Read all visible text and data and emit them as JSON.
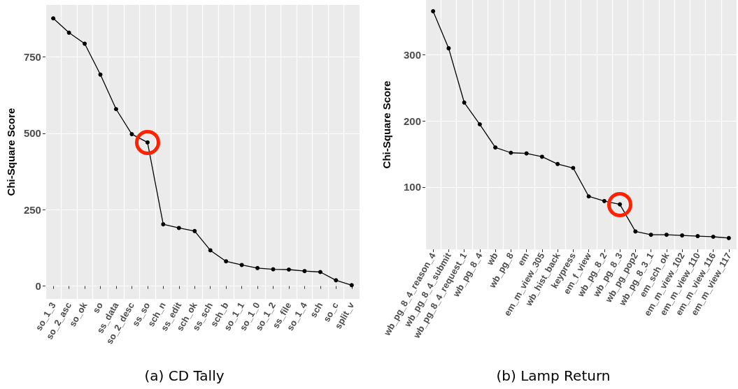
{
  "chart_data": [
    {
      "type": "line",
      "title": "(a) CD Tally",
      "ylabel": "Chi-Square Score",
      "categories": [
        "so_1_3",
        "so_2_asc",
        "so_ok",
        "so",
        "ss_data",
        "so_2_desc",
        "ss_so",
        "sch_n",
        "ss_edit",
        "sch_ok",
        "ss_sch",
        "sch_b",
        "so_1_1",
        "so_1_0",
        "so_1_2",
        "ss_file",
        "so_1_4",
        "sch",
        "so_c",
        "split_v"
      ],
      "series": [
        {
          "color": "#000000",
          "values": [
            876,
            829,
            793,
            692,
            579,
            497,
            470,
            202,
            190,
            180,
            117,
            81,
            69,
            59,
            55,
            54,
            49,
            46,
            19,
            3
          ]
        }
      ],
      "ylim": [
        -42,
        920
      ],
      "yticks": [
        0,
        250,
        500,
        750
      ],
      "grid": true,
      "marker": "circle",
      "line_style": "solid",
      "annotations": [
        {
          "x": "ss_so"
        }
      ]
    },
    {
      "type": "line",
      "title": "(b) Lamp Return",
      "ylabel": "Chi-Square Score",
      "categories": [
        "wb_pg_8_4_reason_4",
        "wb_pg_8_4_submit",
        "wb_pg_8_4_request_1",
        "wb_pg_8_4",
        "wb",
        "wb_pg_8",
        "em",
        "em_m_view_305",
        "wb_hist_back",
        "keypress",
        "em_f_view",
        "wb_pg_8_2",
        "wb_pg_8_3",
        "wb_pg_pop2",
        "wb_pg_8_3_1",
        "em_sch_ok",
        "em_m_view_102",
        "em_m_view_110",
        "em_m_view_116",
        "em_m_view_117"
      ],
      "series": [
        {
          "color": "#000000",
          "values": [
            366,
            310,
            228,
            195,
            160,
            152,
            151,
            146,
            135,
            129,
            86,
            79,
            74,
            33,
            28,
            28,
            27,
            26,
            25,
            23
          ]
        }
      ],
      "ylim": [
        6,
        383
      ],
      "yticks": [
        100,
        200,
        300
      ],
      "grid": true,
      "marker": "circle",
      "line_style": "solid",
      "annotations": [
        {
          "x": "wb_pg_8_3"
        }
      ]
    }
  ]
}
